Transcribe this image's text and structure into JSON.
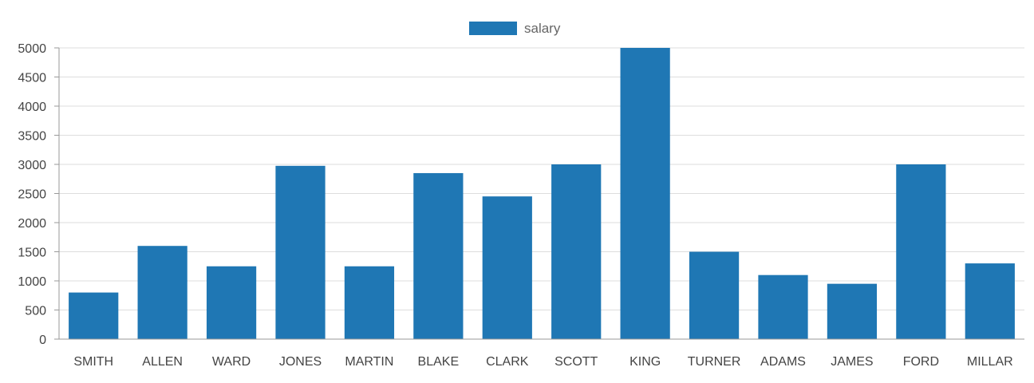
{
  "chart_data": {
    "type": "bar",
    "categories": [
      "SMITH",
      "ALLEN",
      "WARD",
      "JONES",
      "MARTIN",
      "BLAKE",
      "CLARK",
      "SCOTT",
      "KING",
      "TURNER",
      "ADAMS",
      "JAMES",
      "FORD",
      "MILLAR"
    ],
    "series": [
      {
        "name": "salary",
        "values": [
          800,
          1600,
          1250,
          2975,
          1250,
          2850,
          2450,
          3000,
          5000,
          1500,
          1100,
          950,
          3000,
          1300
        ]
      }
    ],
    "title": "",
    "xlabel": "",
    "ylabel": "",
    "ylim": [
      0,
      5000
    ],
    "yticks": [
      0,
      500,
      1000,
      1500,
      2000,
      2500,
      3000,
      3500,
      4000,
      4500,
      5000
    ],
    "grid": true,
    "legend_position": "top-center",
    "colors": {
      "bar": "#1f77b4",
      "grid": "#dddddd",
      "axis": "#999999"
    }
  }
}
